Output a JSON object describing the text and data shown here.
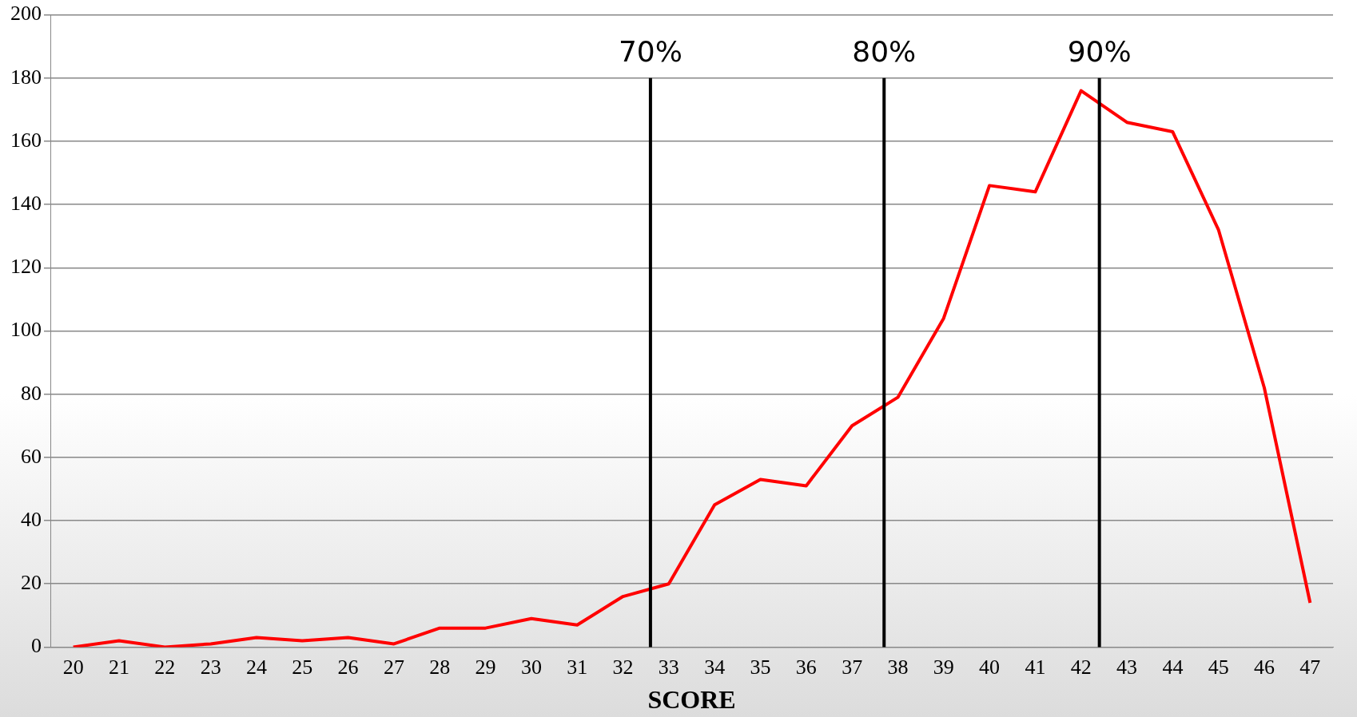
{
  "chart_data": {
    "type": "line",
    "xlabel": "SCORE",
    "x": [
      20,
      21,
      22,
      23,
      24,
      25,
      26,
      27,
      28,
      29,
      30,
      31,
      32,
      33,
      34,
      35,
      36,
      37,
      38,
      39,
      40,
      41,
      42,
      43,
      44,
      45,
      46,
      47
    ],
    "series": [
      {
        "color": "#ff0000",
        "values": [
          0,
          2,
          0,
          1,
          3,
          2,
          3,
          1,
          6,
          6,
          9,
          7,
          16,
          20,
          45,
          53,
          51,
          70,
          79,
          104,
          146,
          144,
          176,
          166,
          163,
          132,
          82,
          14
        ]
      }
    ],
    "xlim": [
      19.5,
      47.5
    ],
    "xticks": [
      20,
      21,
      22,
      23,
      24,
      25,
      26,
      27,
      28,
      29,
      30,
      31,
      32,
      33,
      34,
      35,
      36,
      37,
      38,
      39,
      40,
      41,
      42,
      43,
      44,
      45,
      46,
      47
    ],
    "ylim": [
      0,
      200
    ],
    "yticks": [
      0,
      20,
      40,
      60,
      80,
      100,
      120,
      140,
      160,
      180,
      200
    ],
    "grid": "y",
    "legend": false,
    "marker": "none",
    "line_style": "solid",
    "ref_lines": [
      {
        "axis": "x",
        "value": 32.6,
        "color": "#000000"
      },
      {
        "axis": "x",
        "value": 37.7,
        "color": "#000000"
      },
      {
        "axis": "x",
        "value": 42.4,
        "color": "#000000"
      }
    ],
    "annotations": [
      "70%",
      "80%",
      "90%"
    ]
  }
}
